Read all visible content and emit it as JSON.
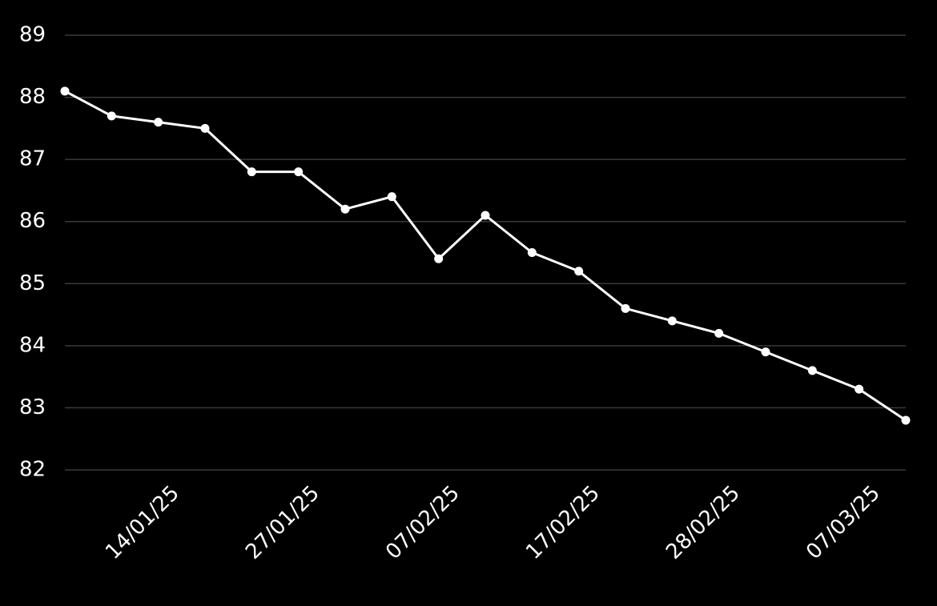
{
  "chart_data": {
    "type": "line",
    "categories": [
      null,
      null,
      "14/01/25",
      null,
      null,
      "27/01/25",
      null,
      null,
      "07/02/25",
      null,
      null,
      "17/02/25",
      null,
      null,
      "28/02/25",
      null,
      null,
      "07/03/25",
      null
    ],
    "series": [
      {
        "color": "#ffffff",
        "values": [
          88.1,
          87.7,
          87.6,
          87.5,
          86.8,
          86.8,
          86.2,
          86.4,
          85.4,
          86.1,
          85.5,
          85.2,
          84.6,
          84.4,
          84.2,
          83.9,
          83.6,
          83.3,
          82.8
        ]
      }
    ],
    "ylim": [
      82,
      89
    ],
    "yticks": [
      82,
      83,
      84,
      85,
      86,
      87,
      88,
      89
    ],
    "grid": true
  }
}
